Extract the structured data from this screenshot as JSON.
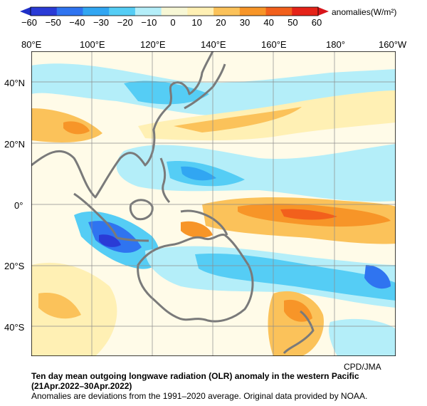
{
  "colorbar": {
    "ticks": [
      "−60",
      "−50",
      "−40",
      "−30",
      "−20",
      "−10",
      "0",
      "10",
      "20",
      "30",
      "40",
      "50",
      "60"
    ],
    "title": "anomalies(W/m²)",
    "colors": [
      "#2a3bd6",
      "#2f74f0",
      "#31a6f2",
      "#55cdf5",
      "#b4eef9",
      "#f7f7d5",
      "#fff0b4",
      "#fbc25a",
      "#f79528",
      "#f2601c",
      "#e52318"
    ]
  },
  "map": {
    "lon_labels": [
      "80°E",
      "100°E",
      "120°E",
      "140°E",
      "160°E",
      "180°",
      "160°W"
    ],
    "lat_labels": [
      "40°N",
      "20°N",
      "0°",
      "20°S",
      "40°S"
    ],
    "coast_color": "#7a7a7a",
    "grid_color": "#8c8c8c"
  },
  "credit": "CPD/JMA",
  "caption": {
    "title_line1": "Ten day mean outgoing longwave radiation (OLR) anomaly in the western Pacific",
    "title_line2": "(21Apr.2022–30Apr.2022)",
    "note": "Anomalies are deviations from the 1991–2020 average. Original data provided by NOAA."
  }
}
